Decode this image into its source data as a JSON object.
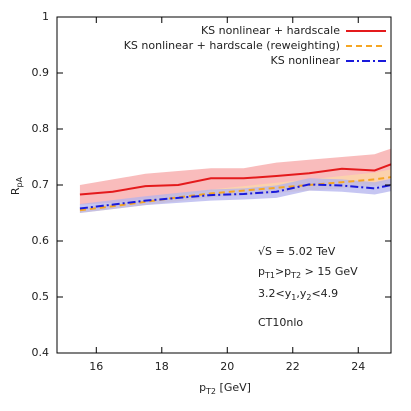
{
  "chart_data": {
    "type": "line",
    "x_label": [
      "p",
      "T2",
      " [GeV]"
    ],
    "y_label": [
      "R",
      "pA"
    ],
    "x": [
      15.5,
      16.5,
      17.5,
      18.5,
      19.5,
      20.5,
      21.5,
      22.5,
      23.5,
      24.5,
      25
    ],
    "series": [
      {
        "name": "KS nonlinear + hardscale",
        "color": "#e41a1c",
        "dash": "none",
        "values": [
          0.683,
          0.688,
          0.698,
          0.7,
          0.712,
          0.712,
          0.716,
          0.721,
          0.729,
          0.726,
          0.737
        ],
        "band": {
          "color": "#f7a6a6",
          "lower": [
            0.665,
            0.668,
            0.675,
            0.68,
            0.69,
            0.692,
            0.695,
            0.7,
            0.705,
            0.7,
            0.71
          ],
          "upper": [
            0.7,
            0.71,
            0.72,
            0.725,
            0.73,
            0.73,
            0.74,
            0.745,
            0.75,
            0.755,
            0.765
          ]
        }
      },
      {
        "name": "KS nonlinear + hardscale (reweighting)",
        "color": "#f5a623",
        "dash": "6,4",
        "values": [
          0.655,
          0.662,
          0.67,
          0.678,
          0.685,
          0.69,
          0.695,
          0.7,
          0.705,
          0.71,
          0.714
        ],
        "band": {
          "color": "#fbd9a8",
          "lower": [
            0.65,
            0.657,
            0.664,
            0.671,
            0.678,
            0.682,
            0.686,
            0.69,
            0.694,
            0.698,
            0.7
          ],
          "upper": [
            0.66,
            0.667,
            0.676,
            0.685,
            0.692,
            0.698,
            0.704,
            0.71,
            0.716,
            0.722,
            0.728
          ]
        }
      },
      {
        "name": "KS nonlinear",
        "color": "#1a1adb",
        "dash": "8,3,2,3",
        "values": [
          0.658,
          0.665,
          0.672,
          0.677,
          0.682,
          0.684,
          0.688,
          0.701,
          0.699,
          0.694,
          0.7
        ],
        "band": {
          "color": "#b3b3ee",
          "lower": [
            0.65,
            0.657,
            0.664,
            0.668,
            0.672,
            0.674,
            0.677,
            0.69,
            0.688,
            0.683,
            0.689
          ],
          "upper": [
            0.666,
            0.673,
            0.68,
            0.686,
            0.692,
            0.694,
            0.699,
            0.712,
            0.71,
            0.705,
            0.711
          ]
        }
      }
    ],
    "annotations": [
      [
        "√S = 5.02 TeV"
      ],
      [
        "p",
        "T1",
        ">p",
        "T2",
        " > 15 GeV"
      ],
      [
        "3.2<y",
        "1",
        ",y",
        "2",
        "<4.9"
      ],
      [
        "CT10nlo"
      ]
    ],
    "xlim": [
      14.8,
      25
    ],
    "ylim": [
      0.4,
      1
    ],
    "xticks": [
      16,
      18,
      20,
      22,
      24
    ],
    "yticks": [
      0.4,
      0.5,
      0.6,
      0.7,
      0.8,
      0.9,
      1
    ],
    "legend": "top-right"
  }
}
